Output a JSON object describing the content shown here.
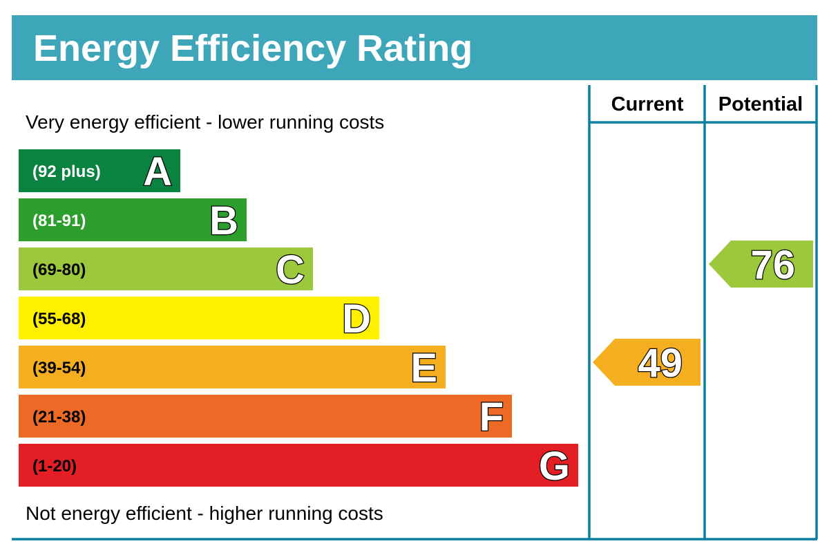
{
  "chart_data": {
    "type": "bar",
    "title": "Energy Efficiency Rating",
    "top_note": "Very energy efficient - lower running costs",
    "bottom_note": "Not energy efficient - higher running costs",
    "columns": [
      "Current",
      "Potential"
    ],
    "bands": [
      {
        "letter": "A",
        "range": "(92 plus)",
        "min": 92,
        "max": 100,
        "color": "#0a8240",
        "text_color": "#ffffff"
      },
      {
        "letter": "B",
        "range": "(81-91)",
        "min": 81,
        "max": 91,
        "color": "#2c9e2c",
        "text_color": "#ffffff"
      },
      {
        "letter": "C",
        "range": "(69-80)",
        "min": 69,
        "max": 80,
        "color": "#9cc93c",
        "text_color": "#000000"
      },
      {
        "letter": "D",
        "range": "(55-68)",
        "min": 55,
        "max": 68,
        "color": "#fff000",
        "text_color": "#000000"
      },
      {
        "letter": "E",
        "range": "(39-54)",
        "min": 39,
        "max": 54,
        "color": "#f5ae1f",
        "text_color": "#000000"
      },
      {
        "letter": "F",
        "range": "(21-38)",
        "min": 21,
        "max": 38,
        "color": "#ec6a25",
        "text_color": "#000000"
      },
      {
        "letter": "G",
        "range": "(1-20)",
        "min": 1,
        "max": 20,
        "color": "#e31e25",
        "text_color": "#000000"
      }
    ],
    "ratings": [
      {
        "column": "Current",
        "value": "49",
        "band": "E"
      },
      {
        "column": "Potential",
        "value": "76",
        "band": "C"
      }
    ],
    "header_color": "#3ea6b9",
    "frame_color": "#0a7fa0"
  }
}
